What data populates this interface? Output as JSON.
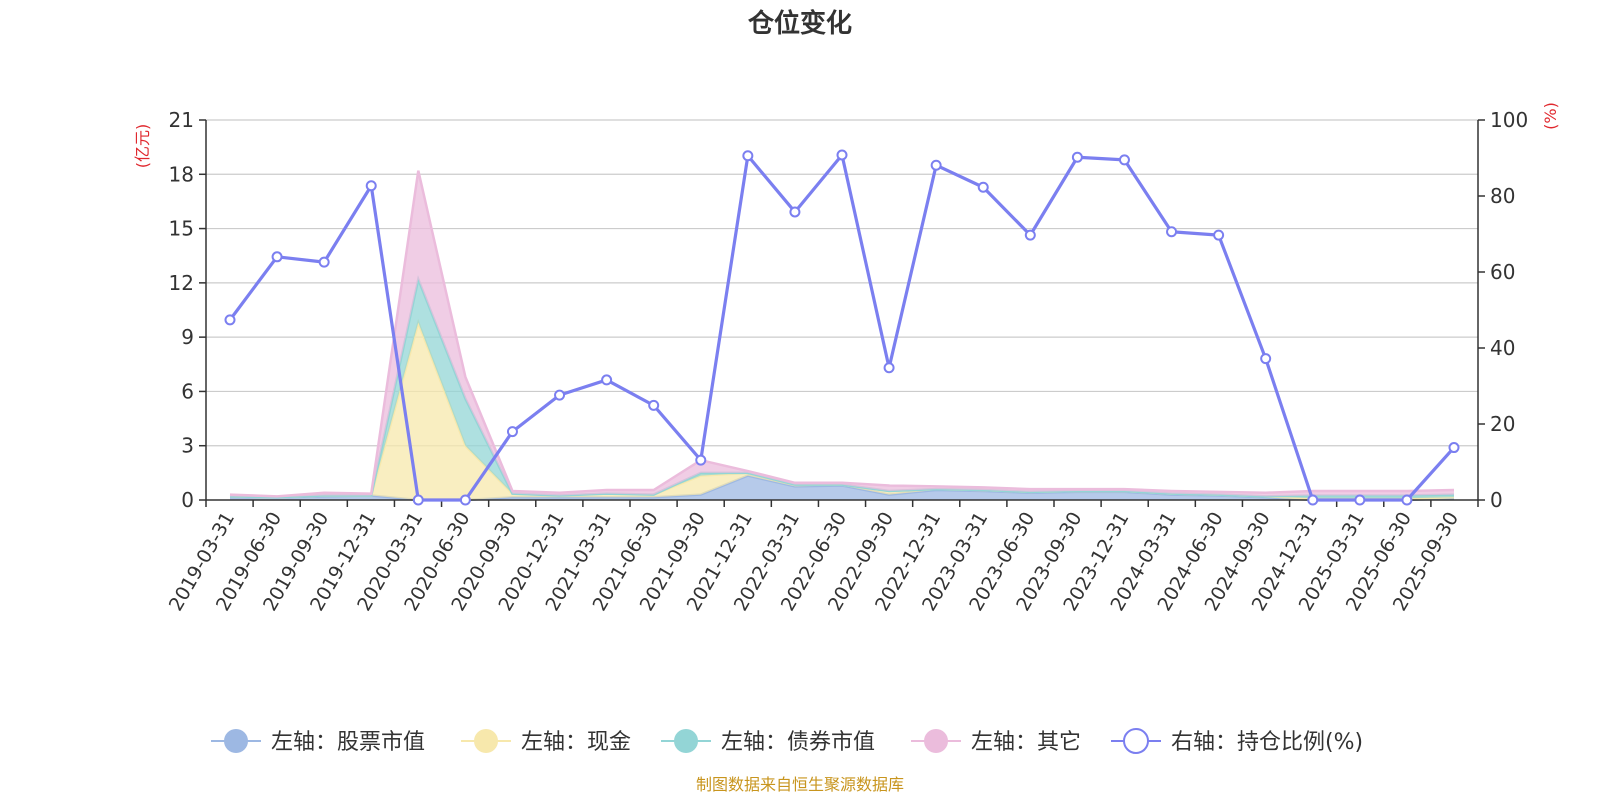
{
  "chart_data": {
    "type": "area",
    "title": "仓位变化",
    "left_axis_unit": "(亿元)",
    "right_axis_unit": "(%)",
    "left_ylim": [
      0,
      21
    ],
    "left_ticks": [
      0,
      3,
      6,
      9,
      12,
      15,
      18,
      21
    ],
    "right_ylim": [
      0,
      100
    ],
    "right_ticks": [
      0,
      20,
      40,
      60,
      80,
      100
    ],
    "categories": [
      "2019-03-31",
      "2019-06-30",
      "2019-09-30",
      "2019-12-31",
      "2020-03-31",
      "2020-06-30",
      "2020-09-30",
      "2020-12-31",
      "2021-03-31",
      "2021-06-30",
      "2021-09-30",
      "2021-12-31",
      "2022-03-31",
      "2022-06-30",
      "2022-09-30",
      "2022-12-31",
      "2023-03-31",
      "2023-06-30",
      "2023-09-30",
      "2023-12-31",
      "2024-03-31",
      "2024-06-30",
      "2024-09-30",
      "2024-12-31",
      "2025-03-31",
      "2025-06-30",
      "2025-09-30"
    ],
    "stacked_series": [
      {
        "name": "左轴：股票市值",
        "color": "#9db8e3",
        "values": [
          0.15,
          0.15,
          0.2,
          0.25,
          0.0,
          0.0,
          0.15,
          0.15,
          0.15,
          0.15,
          0.3,
          1.35,
          0.75,
          0.8,
          0.3,
          0.55,
          0.5,
          0.4,
          0.45,
          0.45,
          0.3,
          0.25,
          0.15,
          0.0,
          0.0,
          0.0,
          0.1
        ]
      },
      {
        "name": "左轴：现金",
        "color": "#f7e8ac",
        "values": [
          0.05,
          0.0,
          0.05,
          0.0,
          9.8,
          3.0,
          0.2,
          0.1,
          0.2,
          0.15,
          1.05,
          0.15,
          0.1,
          0.05,
          0.2,
          0.05,
          0.05,
          0.05,
          0.05,
          0.05,
          0.05,
          0.05,
          0.05,
          0.1,
          0.1,
          0.1,
          0.05
        ]
      },
      {
        "name": "左轴：债券市值",
        "color": "#93d5d6",
        "values": [
          0.0,
          0.0,
          0.0,
          0.0,
          2.4,
          2.6,
          0.0,
          0.0,
          0.0,
          0.0,
          0.15,
          0.0,
          0.0,
          0.0,
          0.0,
          0.0,
          0.0,
          0.0,
          0.0,
          0.0,
          0.0,
          0.0,
          0.0,
          0.15,
          0.15,
          0.15,
          0.15
        ]
      },
      {
        "name": "左轴：其它",
        "color": "#ebbcdc",
        "values": [
          0.1,
          0.05,
          0.15,
          0.1,
          6.0,
          1.2,
          0.15,
          0.15,
          0.2,
          0.25,
          0.7,
          0.1,
          0.1,
          0.1,
          0.3,
          0.15,
          0.15,
          0.15,
          0.1,
          0.1,
          0.15,
          0.15,
          0.2,
          0.25,
          0.25,
          0.25,
          0.25
        ]
      }
    ],
    "line_series": {
      "name": "右轴：持仓比例(%)",
      "color": "#7b7ff0",
      "values": [
        47.4,
        64.0,
        62.6,
        82.7,
        0.0,
        0.0,
        18.0,
        27.6,
        31.6,
        24.9,
        10.5,
        90.6,
        75.8,
        90.8,
        34.8,
        88.1,
        82.3,
        69.7,
        90.2,
        89.5,
        70.6,
        69.7,
        37.2,
        0.0,
        0.0,
        0.0,
        13.8
      ]
    },
    "legend": [
      {
        "name": "左轴：股票市值",
        "color": "#9db8e3",
        "kind": "filled"
      },
      {
        "name": "左轴：现金",
        "color": "#f7e8ac",
        "kind": "filled"
      },
      {
        "name": "左轴：债券市值",
        "color": "#93d5d6",
        "kind": "filled"
      },
      {
        "name": "左轴：其它",
        "color": "#ebbcdc",
        "kind": "filled"
      },
      {
        "name": "右轴：持仓比例(%)",
        "color": "#7b7ff0",
        "kind": "hollow"
      }
    ],
    "unit_color": "#e0282e",
    "source_text": "制图数据来自恒生聚源数据库",
    "source_color": "#c8951e"
  }
}
